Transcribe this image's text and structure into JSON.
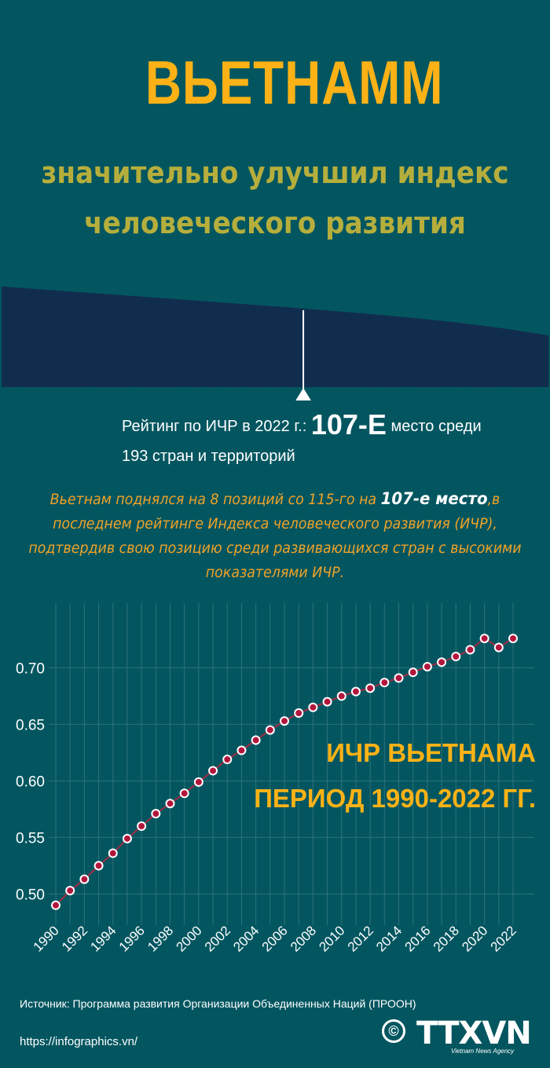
{
  "header": {
    "title": "ВЬЕТНАММ",
    "subtitle_line1": "значительно улучшил индекс",
    "subtitle_line2": "человеческого развития"
  },
  "ranking": {
    "prefix": "Рейтинг по ИЧР в 2022 г.:",
    "rank": "107-Е",
    "suffix": "место среди",
    "line2": "193 стран и территорий",
    "rank_value": 107,
    "total": 193
  },
  "note": {
    "before": "Вьетнам поднялся на 8 позиций со 115-го на ",
    "highlight": "107-е место",
    "after": ",в последнем рейтинге Индекса человеческого развития (ИЧР), подтвердив свою позицию среди развивающихся стран с высокими показателями ИЧР."
  },
  "chart_data": {
    "type": "line",
    "title": "ИЧР ВЬЕТНАМА ПЕРИОД 1990-2022 ГГ.",
    "title_line1": "ИЧР ВЬЕТНАМА",
    "title_line2": "ПЕРИОД 1990-2022 ГГ.",
    "x": [
      1990,
      1991,
      1992,
      1993,
      1994,
      1995,
      1996,
      1997,
      1998,
      1999,
      2000,
      2001,
      2002,
      2003,
      2004,
      2005,
      2006,
      2007,
      2008,
      2009,
      2010,
      2011,
      2012,
      2013,
      2014,
      2015,
      2016,
      2017,
      2018,
      2019,
      2020,
      2021,
      2022
    ],
    "values": [
      0.49,
      0.503,
      0.513,
      0.525,
      0.536,
      0.549,
      0.56,
      0.571,
      0.58,
      0.589,
      0.599,
      0.609,
      0.619,
      0.627,
      0.636,
      0.645,
      0.653,
      0.66,
      0.665,
      0.67,
      0.675,
      0.679,
      0.682,
      0.687,
      0.691,
      0.696,
      0.701,
      0.705,
      0.71,
      0.716,
      0.726,
      0.718,
      0.726
    ],
    "x_tick_labels": [
      "1990",
      "1992",
      "1994",
      "1996",
      "1998",
      "2000",
      "2002",
      "2004",
      "2006",
      "2008",
      "2010",
      "2012",
      "2014",
      "2016",
      "2018",
      "2020",
      "2022"
    ],
    "y_ticks": [
      0.5,
      0.55,
      0.6,
      0.65,
      0.7
    ],
    "y_tick_labels": [
      "0.50",
      "0.55",
      "0.60",
      "0.65",
      "0.70"
    ],
    "xlim": [
      1990,
      2022
    ],
    "ylim": [
      0.485,
      0.735
    ],
    "grid": true,
    "line_color": "#a02d44",
    "marker_color": "#b3163d",
    "grid_color": "#2f7279"
  },
  "footer": {
    "source": "Источник: Программа развития Организации Объединенных Наций (ПРООН)",
    "url": "https://infographics.vn/",
    "copyright": "©",
    "logo": "TTXVN",
    "logo_sub": "Vietnam News Agency"
  },
  "colors": {
    "background": "#035660",
    "accent": "#fcb216",
    "subtitle": "#b6ae3c",
    "bars": "#112d4e"
  }
}
